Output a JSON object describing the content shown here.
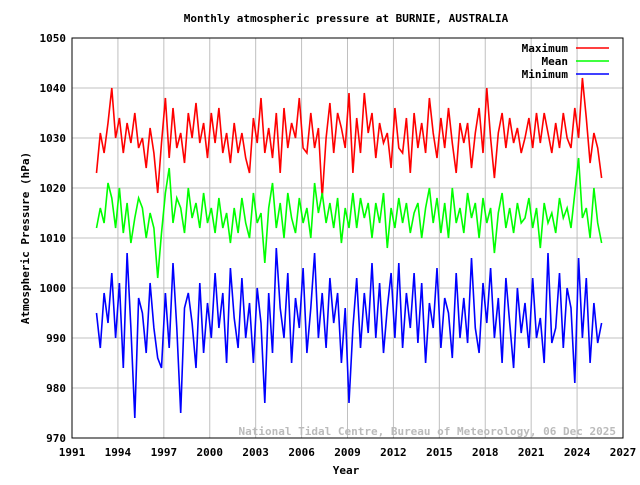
{
  "chart_data": {
    "type": "line",
    "title": "Monthly atmospheric pressure at BURNIE, AUSTRALIA",
    "xlabel": "Year",
    "ylabel": "Atmospheric Pressure (hPa)",
    "xlim": [
      1991,
      2027
    ],
    "ylim": [
      970,
      1050
    ],
    "x_ticks": [
      "1991",
      "1994",
      "1997",
      "2000",
      "2003",
      "2006",
      "2009",
      "2012",
      "2015",
      "2018",
      "2021",
      "2024",
      "2027"
    ],
    "y_ticks": [
      "970",
      "980",
      "990",
      "1000",
      "1010",
      "1020",
      "1030",
      "1040",
      "1050"
    ],
    "grid": true,
    "legend_position": "top-right",
    "watermark": "National Tidal Centre, Bureau of Meteorology, 06 Dec 2025",
    "x_start": 1992.6,
    "x_step": 0.25,
    "series": [
      {
        "name": "Maximum",
        "color": "#ff0000",
        "values": [
          1023,
          1031,
          1027,
          1033,
          1040,
          1030,
          1034,
          1027,
          1033,
          1029,
          1035,
          1028,
          1030,
          1024,
          1032,
          1027,
          1019,
          1029,
          1038,
          1026,
          1036,
          1028,
          1031,
          1025,
          1035,
          1030,
          1037,
          1029,
          1033,
          1026,
          1035,
          1029,
          1036,
          1027,
          1031,
          1025,
          1033,
          1027,
          1031,
          1026,
          1023,
          1034,
          1029,
          1038,
          1027,
          1032,
          1026,
          1035,
          1023,
          1036,
          1028,
          1033,
          1030,
          1038,
          1028,
          1027,
          1035,
          1028,
          1032,
          1018,
          1030,
          1037,
          1027,
          1035,
          1032,
          1028,
          1039,
          1023,
          1034,
          1027,
          1039,
          1031,
          1035,
          1026,
          1033,
          1029,
          1031,
          1024,
          1036,
          1028,
          1027,
          1034,
          1023,
          1035,
          1028,
          1033,
          1027,
          1038,
          1031,
          1026,
          1034,
          1028,
          1036,
          1029,
          1023,
          1033,
          1029,
          1033,
          1024,
          1031,
          1036,
          1027,
          1040,
          1030,
          1022,
          1031,
          1035,
          1028,
          1034,
          1029,
          1032,
          1027,
          1030,
          1034,
          1028,
          1035,
          1029,
          1035,
          1031,
          1027,
          1033,
          1028,
          1035,
          1030,
          1028,
          1036,
          1030,
          1042,
          1034,
          1025,
          1031,
          1028,
          1022
        ]
      },
      {
        "name": "Mean",
        "color": "#00ff00",
        "values": [
          1012,
          1016,
          1013,
          1021,
          1018,
          1012,
          1020,
          1011,
          1017,
          1009,
          1014,
          1018,
          1016,
          1010,
          1015,
          1012,
          1002,
          1011,
          1019,
          1024,
          1013,
          1018,
          1016,
          1011,
          1020,
          1014,
          1017,
          1012,
          1019,
          1013,
          1016,
          1011,
          1018,
          1012,
          1015,
          1009,
          1016,
          1011,
          1018,
          1013,
          1010,
          1019,
          1013,
          1015,
          1005,
          1016,
          1021,
          1012,
          1017,
          1010,
          1019,
          1014,
          1011,
          1018,
          1013,
          1016,
          1010,
          1021,
          1015,
          1019,
          1013,
          1017,
          1012,
          1018,
          1009,
          1016,
          1012,
          1019,
          1012,
          1018,
          1014,
          1017,
          1010,
          1017,
          1013,
          1019,
          1008,
          1016,
          1012,
          1018,
          1013,
          1017,
          1011,
          1015,
          1017,
          1010,
          1016,
          1020,
          1013,
          1018,
          1011,
          1017,
          1010,
          1020,
          1013,
          1016,
          1011,
          1019,
          1014,
          1017,
          1010,
          1018,
          1013,
          1016,
          1007,
          1015,
          1019,
          1012,
          1016,
          1011,
          1017,
          1013,
          1014,
          1018,
          1012,
          1016,
          1008,
          1017,
          1013,
          1015,
          1011,
          1018,
          1014,
          1016,
          1012,
          1019,
          1026,
          1014,
          1016,
          1010,
          1020,
          1013,
          1009
        ]
      },
      {
        "name": "Minimum",
        "color": "#0000ff",
        "values": [
          995,
          988,
          999,
          993,
          1003,
          990,
          1001,
          984,
          1007,
          992,
          974,
          998,
          995,
          987,
          1001,
          992,
          986,
          984,
          999,
          988,
          1005,
          992,
          975,
          996,
          999,
          993,
          984,
          1001,
          987,
          997,
          990,
          1003,
          992,
          999,
          985,
          1004,
          994,
          988,
          1002,
          990,
          997,
          985,
          1000,
          993,
          977,
          999,
          987,
          1008,
          996,
          990,
          1003,
          985,
          998,
          992,
          1004,
          987,
          996,
          1007,
          990,
          999,
          988,
          1002,
          993,
          999,
          985,
          996,
          977,
          992,
          1002,
          988,
          999,
          991,
          1005,
          990,
          1001,
          987,
          996,
          1003,
          990,
          1005,
          988,
          999,
          992,
          1003,
          989,
          1001,
          985,
          997,
          992,
          1004,
          988,
          998,
          995,
          986,
          1003,
          990,
          998,
          989,
          1006,
          992,
          987,
          1001,
          993,
          1004,
          990,
          998,
          985,
          1002,
          993,
          984,
          1000,
          991,
          997,
          988,
          1002,
          990,
          994,
          985,
          1007,
          989,
          992,
          1003,
          988,
          1000,
          996,
          981,
          1006,
          990,
          1002,
          985,
          997,
          989,
          993
        ]
      }
    ]
  }
}
